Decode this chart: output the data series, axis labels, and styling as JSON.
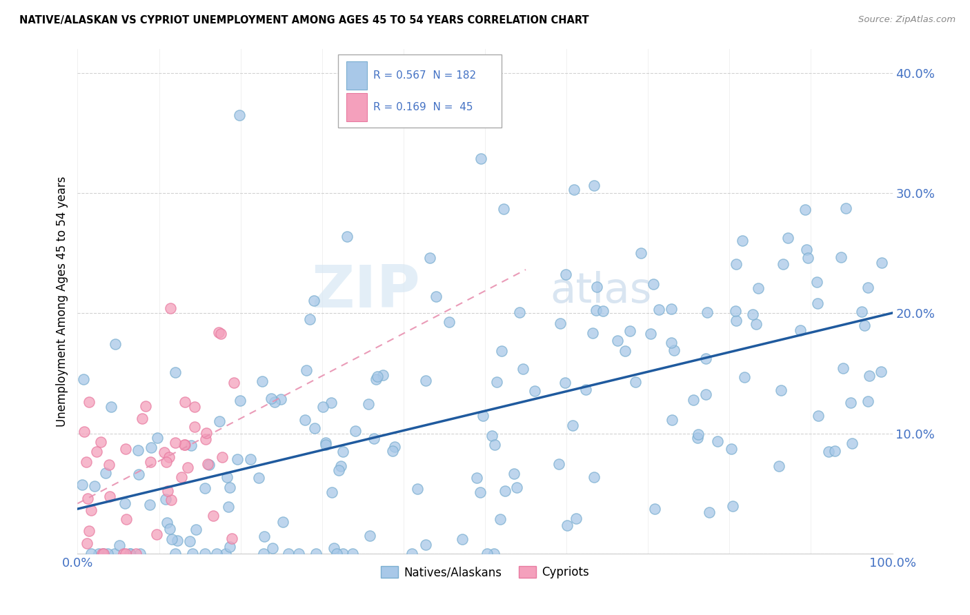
{
  "title": "NATIVE/ALASKAN VS CYPRIOT UNEMPLOYMENT AMONG AGES 45 TO 54 YEARS CORRELATION CHART",
  "source": "Source: ZipAtlas.com",
  "ylabel": "Unemployment Among Ages 45 to 54 years",
  "x_min": 0.0,
  "x_max": 1.0,
  "y_min": 0.0,
  "y_max": 0.42,
  "native_R": 0.567,
  "native_N": 182,
  "cypriot_R": 0.169,
  "cypriot_N": 45,
  "native_color": "#A8C8E8",
  "cypriot_color": "#F4A0BC",
  "native_edge_color": "#7AAED0",
  "cypriot_edge_color": "#E87AA0",
  "native_line_color": "#1F5A9E",
  "cypriot_line_color": "#E890B0",
  "tick_color": "#4472C4",
  "grid_color": "#CCCCCC",
  "watermark_zip": "ZIP",
  "watermark_atlas": "atlas",
  "legend_label_native": "Natives/Alaskans",
  "legend_label_cypriot": "Cypriots"
}
